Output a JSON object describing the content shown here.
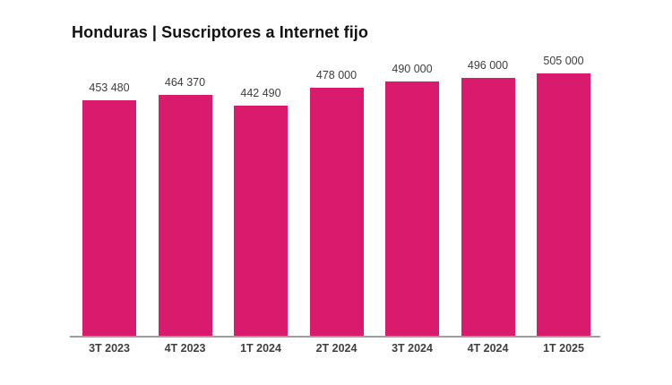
{
  "title": "Honduras | Suscriptores a Internet fijo",
  "chart_data": {
    "type": "bar",
    "title": "Honduras | Suscriptores a Internet fijo",
    "xlabel": "",
    "ylabel": "",
    "categories": [
      "3T 2023",
      "4T 2023",
      "1T 2024",
      "2T 2024",
      "3T 2024",
      "4T 2024",
      "1T 2025"
    ],
    "values": [
      453480,
      464370,
      442490,
      478000,
      490000,
      496000,
      505000
    ],
    "value_labels": [
      "453 480",
      "464 370",
      "442 490",
      "478 000",
      "490 000",
      "496 000",
      "505 000"
    ],
    "ylim": [
      0,
      543000
    ],
    "grid": false,
    "legend": "none",
    "bar_color": "#D91A6D",
    "axis_line_color": "#9e9e9e",
    "label_color": "#3d3d3d",
    "title_color": "#121212"
  }
}
